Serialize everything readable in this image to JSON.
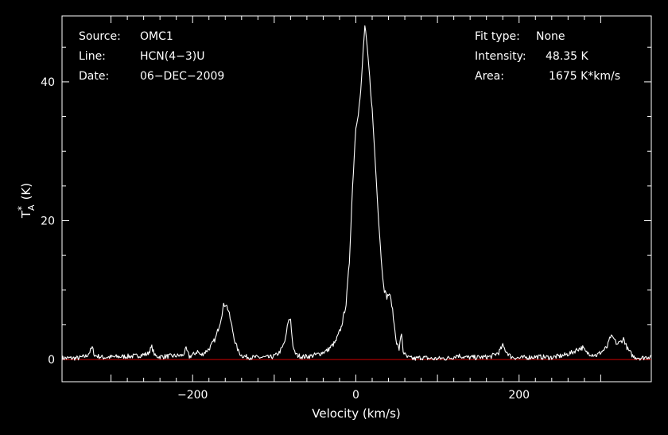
{
  "chart_data": {
    "type": "line",
    "xlabel": "Velocity (km/s)",
    "ylabel_main": "T",
    "ylabel_sup": "*",
    "ylabel_sub": "A",
    "ylabel_unit": "(K)",
    "xlim": [
      -360,
      362
    ],
    "ylim": [
      -3.2,
      49.5
    ],
    "xticks": [
      -200,
      0,
      200
    ],
    "yticks": [
      0,
      20,
      40
    ],
    "grid": false,
    "baseline": 0,
    "colors": {
      "background": "#000000",
      "axes": "#ffffff",
      "spectrum": "#ffffff",
      "baseline": "#cc0000"
    },
    "annotations_left": [
      {
        "label": "Source:",
        "value": "OMC1"
      },
      {
        "label": "Line:",
        "value": "HCN(4−3)U"
      },
      {
        "label": "Date:",
        "value": "06−DEC−2009"
      }
    ],
    "annotations_right": [
      {
        "label": "Fit type:",
        "value": "None"
      },
      {
        "label": "Intensity:",
        "value": "48.35 K"
      },
      {
        "label": "Area:",
        "value": "1675 K*km/s"
      }
    ],
    "series": [
      {
        "x": [
          -360,
          -340,
          -330,
          -326,
          -323,
          -320,
          -310,
          -290,
          -270,
          -255,
          -250,
          -246,
          -240,
          -225,
          -212,
          -208,
          -204,
          -198,
          -194,
          -190,
          -180,
          -172,
          -166,
          -162,
          -159,
          -156,
          -152,
          -148,
          -144,
          -140,
          -135,
          -128,
          -118,
          -105,
          -98,
          -94,
          -90,
          -86,
          -83,
          -80,
          -78,
          -76,
          -72,
          -65,
          -55,
          -45,
          -35,
          -25,
          -18,
          -12,
          -8,
          -4,
          0,
          3,
          6,
          9,
          11,
          13,
          16,
          20,
          24,
          28,
          32,
          35,
          38,
          41,
          44,
          47,
          50,
          53,
          56,
          58,
          60,
          63,
          67,
          72,
          80,
          95,
          115,
          125,
          135,
          150,
          165,
          175,
          180,
          184,
          190,
          200,
          220,
          240,
          255,
          265,
          272,
          278,
          282,
          288,
          295,
          302,
          308,
          312,
          316,
          320,
          324,
          328,
          333,
          340,
          350,
          362
        ],
        "y": [
          0.2,
          0.2,
          0.5,
          1.1,
          1.7,
          0.6,
          0.3,
          0.4,
          0.5,
          0.8,
          1.8,
          0.5,
          0.4,
          0.5,
          0.6,
          1.5,
          0.4,
          0.8,
          1.2,
          0.6,
          1.5,
          3.0,
          5.5,
          7.8,
          8.0,
          7.0,
          4.8,
          2.5,
          1.2,
          0.6,
          0.4,
          0.3,
          0.3,
          0.3,
          0.6,
          1.0,
          1.7,
          3.0,
          5.5,
          5.9,
          3.0,
          1.2,
          0.6,
          0.4,
          0.5,
          0.8,
          1.3,
          2.5,
          4.6,
          8.0,
          14.0,
          25.0,
          33.5,
          35.5,
          38.5,
          44.5,
          48.0,
          46.0,
          42.0,
          36.0,
          28.0,
          20.0,
          13.0,
          10.0,
          9.0,
          9.5,
          8.0,
          5.0,
          2.4,
          1.5,
          3.8,
          1.2,
          0.7,
          0.3,
          0.2,
          0.1,
          0.3,
          0.1,
          0.2,
          0.6,
          0.3,
          0.3,
          0.4,
          1.0,
          2.0,
          1.2,
          0.4,
          0.2,
          0.4,
          0.3,
          0.6,
          1.0,
          1.5,
          1.7,
          1.0,
          0.8,
          0.6,
          1.2,
          1.8,
          3.3,
          3.0,
          2.2,
          2.5,
          3.0,
          1.5,
          0.4,
          0.2,
          0.5
        ]
      }
    ]
  }
}
